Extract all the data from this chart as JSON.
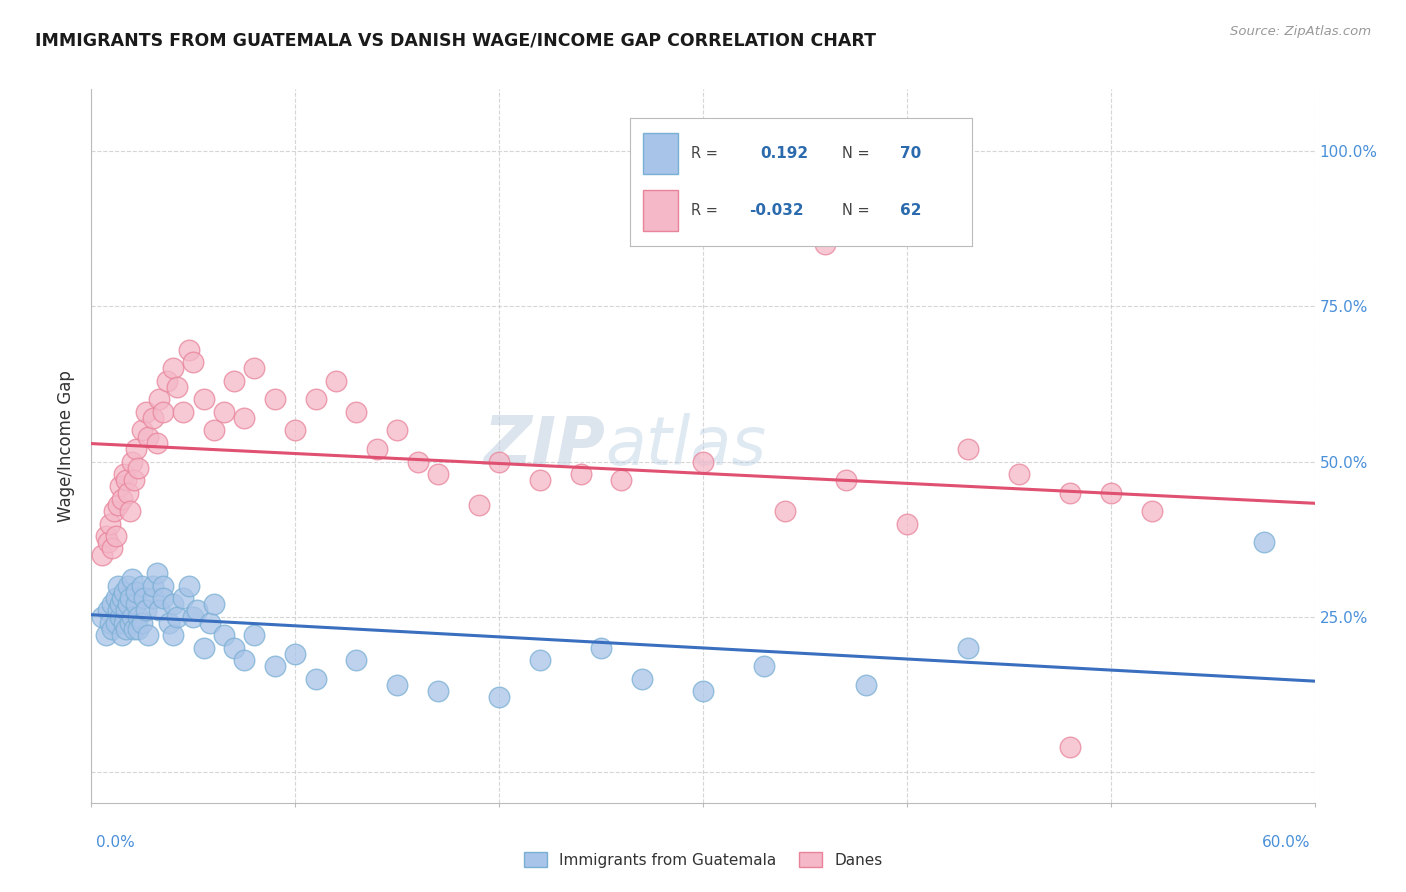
{
  "title": "IMMIGRANTS FROM GUATEMALA VS DANISH WAGE/INCOME GAP CORRELATION CHART",
  "source": "Source: ZipAtlas.com",
  "ylabel": "Wage/Income Gap",
  "xlim": [
    0.0,
    0.6
  ],
  "ylim": [
    -0.05,
    1.1
  ],
  "blue_color": "#a8c4e8",
  "blue_edge_color": "#7aafd4",
  "pink_color": "#f4b8c8",
  "pink_edge_color": "#e8849a",
  "blue_line_color": "#3a6fbf",
  "pink_line_color": "#e05070",
  "watermark_color": "#c8d8e8",
  "legend_label_blue": "Immigrants from Guatemala",
  "legend_label_pink": "Danes",
  "right_ytick_vals": [
    0.0,
    0.25,
    0.5,
    0.75,
    1.0
  ],
  "right_yticklabels": [
    "",
    "25.0%",
    "50.0%",
    "75.0%",
    "100.0%"
  ],
  "blue_scatter_x": [
    0.005,
    0.007,
    0.008,
    0.009,
    0.01,
    0.01,
    0.012,
    0.012,
    0.013,
    0.013,
    0.014,
    0.014,
    0.015,
    0.015,
    0.016,
    0.016,
    0.017,
    0.017,
    0.018,
    0.018,
    0.019,
    0.019,
    0.02,
    0.02,
    0.021,
    0.022,
    0.022,
    0.023,
    0.023,
    0.025,
    0.025,
    0.026,
    0.027,
    0.028,
    0.03,
    0.03,
    0.032,
    0.033,
    0.035,
    0.035,
    0.038,
    0.04,
    0.04,
    0.042,
    0.045,
    0.048,
    0.05,
    0.052,
    0.055,
    0.058,
    0.06,
    0.065,
    0.07,
    0.075,
    0.08,
    0.09,
    0.1,
    0.11,
    0.13,
    0.15,
    0.17,
    0.2,
    0.22,
    0.25,
    0.27,
    0.3,
    0.33,
    0.38,
    0.43,
    0.575
  ],
  "blue_scatter_y": [
    0.25,
    0.22,
    0.26,
    0.24,
    0.27,
    0.23,
    0.28,
    0.24,
    0.3,
    0.26,
    0.25,
    0.27,
    0.22,
    0.28,
    0.29,
    0.24,
    0.26,
    0.23,
    0.3,
    0.27,
    0.24,
    0.28,
    0.31,
    0.25,
    0.23,
    0.27,
    0.29,
    0.25,
    0.23,
    0.3,
    0.24,
    0.28,
    0.26,
    0.22,
    0.28,
    0.3,
    0.32,
    0.26,
    0.3,
    0.28,
    0.24,
    0.27,
    0.22,
    0.25,
    0.28,
    0.3,
    0.25,
    0.26,
    0.2,
    0.24,
    0.27,
    0.22,
    0.2,
    0.18,
    0.22,
    0.17,
    0.19,
    0.15,
    0.18,
    0.14,
    0.13,
    0.12,
    0.18,
    0.2,
    0.15,
    0.13,
    0.17,
    0.14,
    0.2,
    0.37
  ],
  "pink_scatter_x": [
    0.005,
    0.007,
    0.008,
    0.009,
    0.01,
    0.011,
    0.012,
    0.013,
    0.014,
    0.015,
    0.016,
    0.017,
    0.018,
    0.019,
    0.02,
    0.021,
    0.022,
    0.023,
    0.025,
    0.027,
    0.028,
    0.03,
    0.032,
    0.033,
    0.035,
    0.037,
    0.04,
    0.042,
    0.045,
    0.048,
    0.05,
    0.055,
    0.06,
    0.065,
    0.07,
    0.075,
    0.08,
    0.09,
    0.1,
    0.11,
    0.12,
    0.13,
    0.14,
    0.15,
    0.16,
    0.17,
    0.19,
    0.2,
    0.22,
    0.24,
    0.26,
    0.3,
    0.34,
    0.37,
    0.4,
    0.43,
    0.455,
    0.48,
    0.5,
    0.52,
    0.36,
    0.48
  ],
  "pink_scatter_y": [
    0.35,
    0.38,
    0.37,
    0.4,
    0.36,
    0.42,
    0.38,
    0.43,
    0.46,
    0.44,
    0.48,
    0.47,
    0.45,
    0.42,
    0.5,
    0.47,
    0.52,
    0.49,
    0.55,
    0.58,
    0.54,
    0.57,
    0.53,
    0.6,
    0.58,
    0.63,
    0.65,
    0.62,
    0.58,
    0.68,
    0.66,
    0.6,
    0.55,
    0.58,
    0.63,
    0.57,
    0.65,
    0.6,
    0.55,
    0.6,
    0.63,
    0.58,
    0.52,
    0.55,
    0.5,
    0.48,
    0.43,
    0.5,
    0.47,
    0.48,
    0.47,
    0.5,
    0.42,
    0.47,
    0.4,
    0.52,
    0.48,
    0.45,
    0.45,
    0.42,
    0.85,
    0.04
  ]
}
